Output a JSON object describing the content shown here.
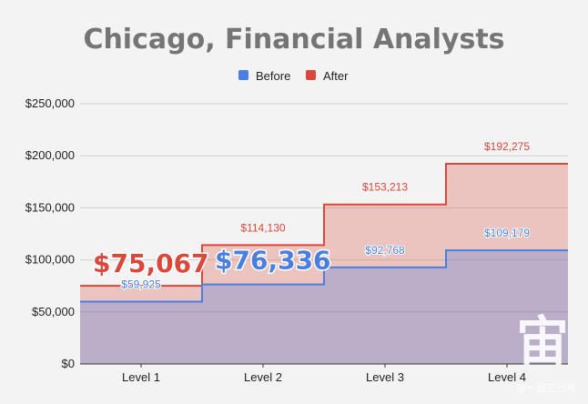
{
  "chart_data": {
    "type": "area",
    "subtype": "step",
    "title": "Chicago, Financial Analysts",
    "xlabel": "",
    "ylabel": "",
    "categories": [
      "Level 1",
      "Level 2",
      "Level 3",
      "Level 4"
    ],
    "series": [
      {
        "name": "Before",
        "color": "#4a7fe0",
        "values": [
          59925,
          76336,
          92768,
          109179
        ],
        "labels": [
          "$59,925",
          "$76,336",
          "$92,768",
          "$109,179"
        ]
      },
      {
        "name": "After",
        "color": "#d9483b",
        "values": [
          75067,
          114130,
          153213,
          192275
        ],
        "labels": [
          "$75,067",
          "$114,130",
          "$153,213",
          "$192,275"
        ]
      }
    ],
    "highlights": [
      {
        "series": "After",
        "category": "Level 1",
        "text": "$75,067"
      },
      {
        "series": "Before",
        "category": "Level 2",
        "text": "$76,336"
      }
    ],
    "ylim": [
      0,
      250000
    ],
    "yticks": [
      0,
      50000,
      100000,
      150000,
      200000,
      250000
    ],
    "ytick_labels": [
      "$0",
      "$50,000",
      "$100,000",
      "$150,000",
      "$200,000",
      "$250,000"
    ],
    "grid": true,
    "legend_position": "top-center"
  },
  "watermark": {
    "glyph": "宙",
    "text": "@一亩三分地"
  },
  "colors": {
    "background": "#f3f3f3",
    "title": "#757575",
    "grid": "#d0d0d0",
    "axis": "#333333"
  }
}
